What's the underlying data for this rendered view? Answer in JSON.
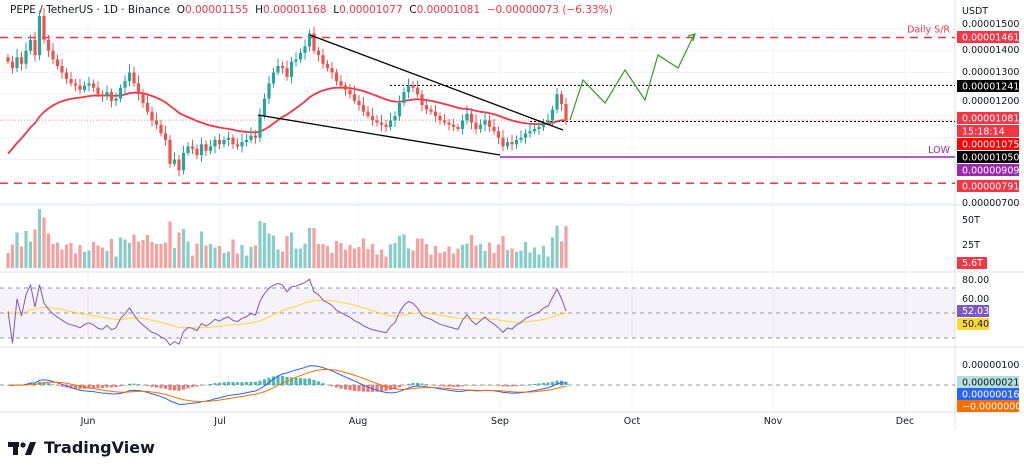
{
  "header": {
    "symbol": "PEPE / TetherUS · 1D · Binance",
    "o_label": "O",
    "o": "0.00001155",
    "h_label": "H",
    "h": "0.00001168",
    "l_label": "L",
    "l": "0.00001077",
    "c_label": "C",
    "c": "0.00001081",
    "change": "−0.00000073 (−6.33%)"
  },
  "price_axis": {
    "currency": "USDT",
    "ticks": [
      "0.00001500",
      "0.00001400",
      "0.00001300",
      "0.00001200",
      "0.00000700"
    ]
  },
  "price_tags": [
    {
      "text": "0.00001461",
      "color": "#f23645"
    },
    {
      "text": "0.00001241",
      "color": "#000000"
    },
    {
      "text": "0.00001081",
      "color": "#f23645"
    },
    {
      "text": "15:18:14",
      "color": "#f23645"
    },
    {
      "text": "0.00001075",
      "color": "#ff0000"
    },
    {
      "text": "0.00001050",
      "color": "#000000"
    },
    {
      "text": "0.00000909",
      "color": "#9c27b0"
    },
    {
      "text": "0.00000791",
      "color": "#f23645"
    }
  ],
  "annotations": {
    "daily_sr": "Daily S/R",
    "low": "LOW"
  },
  "volume_axis": {
    "ticks": [
      "50T",
      "25T"
    ],
    "current": "5.6T",
    "current_color": "#f23645"
  },
  "rsi_axis": {
    "ticks": [
      "80.00",
      "60.00"
    ],
    "rsi": "52.03",
    "rsi_color": "#7e57c2",
    "ma": "50.40",
    "ma_color": "#fdd835"
  },
  "macd_axis": {
    "ticks": [
      "0.00000100"
    ],
    "hist": "0.00000021",
    "hist_color": "#b2dfdb",
    "macd": "0.00000016",
    "macd_color": "#2962ff",
    "signal": "−0.00000005",
    "signal_color": "#ff6d00"
  },
  "time_axis": [
    "Jun",
    "Jul",
    "Aug",
    "Sep",
    "Oct",
    "Nov",
    "Dec"
  ],
  "brand": "TradingView",
  "colors": {
    "up": "#26a69a",
    "down": "#ef5350",
    "ma": "#f23645",
    "projection": "#2e9e1e"
  },
  "chart_data": {
    "type": "candlestick",
    "interval": "1D",
    "closes": [
      1.35e-05,
      1.32e-05,
      1.37e-05,
      1.34e-05,
      1.4e-05,
      1.45e-05,
      1.38e-05,
      1.56e-05,
      1.45e-05,
      1.4e-05,
      1.36e-05,
      1.33e-05,
      1.3e-05,
      1.27e-05,
      1.25e-05,
      1.24e-05,
      1.22e-05,
      1.24e-05,
      1.25e-05,
      1.23e-05,
      1.2e-05,
      1.19e-05,
      1.21e-05,
      1.17e-05,
      1.18e-05,
      1.23e-05,
      1.26e-05,
      1.3e-05,
      1.25e-05,
      1.2e-05,
      1.16e-05,
      1.12e-05,
      1.08e-05,
      1.06e-05,
      1.02e-05,
      9.9e-06,
      8.8e-06,
      9e-06,
      8.5e-06,
      9.3e-06,
      9.6e-06,
      9.5e-06,
      9.2e-06,
      9.7e-06,
      9.4e-06,
      9.6e-06,
      9.9e-06,
      9.7e-06,
      9.9e-06,
      1e-05,
      9.7e-06,
      9.6e-06,
      9.8e-06,
      9.9e-06,
      1.01e-05,
      1e-05,
      1.1e-05,
      1.18e-05,
      1.25e-05,
      1.3e-05,
      1.33e-05,
      1.32e-05,
      1.28e-05,
      1.35e-05,
      1.36e-05,
      1.39e-05,
      1.42e-05,
      1.48e-05,
      1.4e-05,
      1.38e-05,
      1.34e-05,
      1.32e-05,
      1.3e-05,
      1.26e-05,
      1.24e-05,
      1.22e-05,
      1.2e-05,
      1.17e-05,
      1.15e-05,
      1.12e-05,
      1.1e-05,
      1.08e-05,
      1.07e-05,
      1.06e-05,
      1.05e-05,
      1.08e-05,
      1.1e-05,
      1.16e-05,
      1.21e-05,
      1.24e-05,
      1.23e-05,
      1.2e-05,
      1.15e-05,
      1.13e-05,
      1.12e-05,
      1.1e-05,
      1.08e-05,
      1.07e-05,
      1.06e-05,
      1.05e-05,
      1.04e-05,
      1.08e-05,
      1.11e-05,
      1.07e-05,
      1.04e-05,
      1.06e-05,
      1.08e-05,
      1.05e-05,
      1.03e-05,
      1e-05,
      9.6e-06,
      9.8e-06,
      9.7e-06,
      9.9e-06,
      1e-05,
      1.02e-05,
      1.03e-05,
      1.04e-05,
      1.05e-05,
      1.07e-05,
      1.08e-05,
      1.13e-05,
      1.2e-05,
      1.155e-05,
      1.081e-05
    ],
    "levels": {
      "daily_sr": 1.461e-05,
      "resistance": 1.241e-05,
      "support": 1.075e-05,
      "low": 9.09e-06,
      "lower_sr": 7.91e-06
    },
    "indicators": [
      "Volume",
      "MA",
      "RSI",
      "RSI MA",
      "MACD"
    ],
    "ylim": [
      7e-06,
      1.5e-05
    ]
  }
}
